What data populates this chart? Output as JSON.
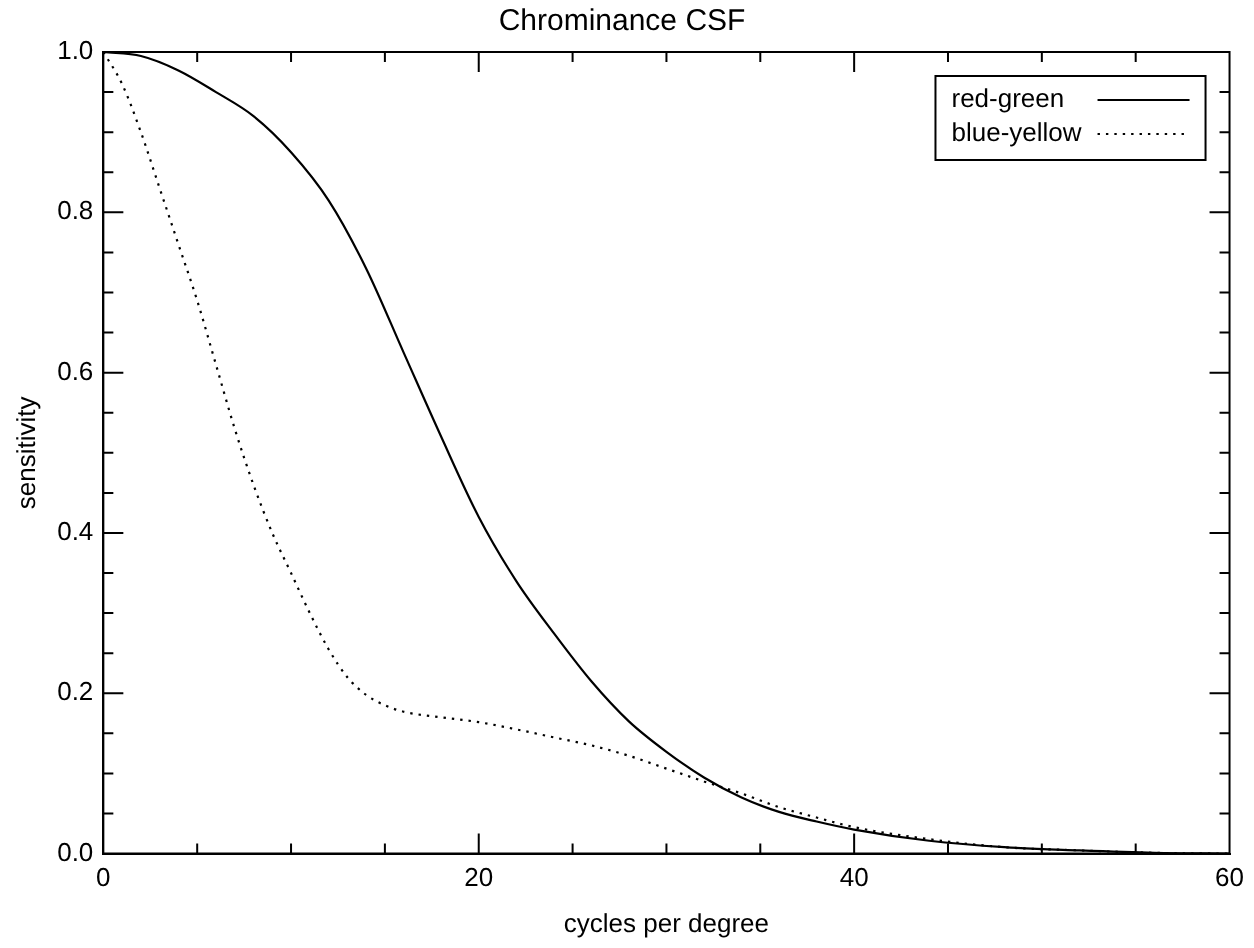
{
  "chart_data": {
    "type": "line",
    "title": "Chrominance CSF",
    "xlabel": "cycles per degree",
    "ylabel": "sensitivity",
    "xlim": [
      0,
      60
    ],
    "xticks": [
      0,
      {
        "value": 5,
        "label": null
      },
      {
        "value": 10,
        "label": null
      },
      {
        "value": 15,
        "label": null
      },
      20,
      {
        "value": 25,
        "label": null
      },
      {
        "value": 30,
        "label": null
      },
      {
        "value": 35,
        "label": null
      },
      40,
      {
        "value": 45,
        "label": null
      },
      {
        "value": 50,
        "label": null
      },
      {
        "value": 55,
        "label": null
      },
      60
    ],
    "ylim": [
      0,
      1
    ],
    "yticks": [
      {
        "value": 0,
        "label": "0.0"
      },
      {
        "value": 0.05,
        "label": null
      },
      {
        "value": 0.1,
        "label": null
      },
      {
        "value": 0.15,
        "label": null
      },
      {
        "value": 0.2,
        "label": "0.2"
      },
      {
        "value": 0.25,
        "label": null
      },
      {
        "value": 0.3,
        "label": null
      },
      {
        "value": 0.35,
        "label": null
      },
      {
        "value": 0.4,
        "label": "0.4"
      },
      {
        "value": 0.45,
        "label": null
      },
      {
        "value": 0.5,
        "label": null
      },
      {
        "value": 0.55,
        "label": null
      },
      {
        "value": 0.6,
        "label": "0.6"
      },
      {
        "value": 0.65,
        "label": null
      },
      {
        "value": 0.7,
        "label": null
      },
      {
        "value": 0.75,
        "label": null
      },
      {
        "value": 0.8,
        "label": "0.8"
      },
      {
        "value": 0.85,
        "label": null
      },
      {
        "value": 0.9,
        "label": null
      },
      {
        "value": 0.95,
        "label": null
      },
      {
        "value": 1,
        "label": "1.0"
      }
    ],
    "grid": false,
    "legend": "top right",
    "marker": "none",
    "series": [
      {
        "name": "red-green",
        "color": "#000000",
        "line_style": "solid",
        "x": [
          0,
          2,
          4,
          6,
          8,
          10,
          12,
          14,
          16,
          18,
          20,
          22,
          24,
          26,
          28,
          30,
          32,
          34,
          36,
          38,
          40,
          44,
          48,
          52,
          56,
          60
        ],
        "values": [
          1.0,
          0.995,
          0.977,
          0.95,
          0.92,
          0.875,
          0.815,
          0.73,
          0.625,
          0.52,
          0.42,
          0.34,
          0.275,
          0.215,
          0.165,
          0.127,
          0.095,
          0.07,
          0.052,
          0.04,
          0.03,
          0.016,
          0.008,
          0.004,
          0.001,
          0
        ]
      },
      {
        "name": "blue-yellow",
        "color": "#000000",
        "line_style": "dotted",
        "x": [
          0,
          1,
          2,
          3,
          4,
          5,
          6,
          7,
          8,
          9,
          10,
          11,
          12,
          13,
          14,
          15,
          16,
          18,
          20,
          22,
          24,
          26,
          28,
          30,
          32,
          34,
          36,
          38,
          40,
          44,
          48,
          52,
          56,
          60
        ],
        "values": [
          1.0,
          0.96,
          0.9,
          0.83,
          0.76,
          0.69,
          0.61,
          0.53,
          0.46,
          0.4,
          0.35,
          0.3,
          0.255,
          0.22,
          0.198,
          0.185,
          0.177,
          0.17,
          0.164,
          0.155,
          0.145,
          0.135,
          0.122,
          0.106,
          0.09,
          0.075,
          0.058,
          0.045,
          0.033,
          0.018,
          0.008,
          0.004,
          0.001,
          0
        ]
      }
    ]
  }
}
